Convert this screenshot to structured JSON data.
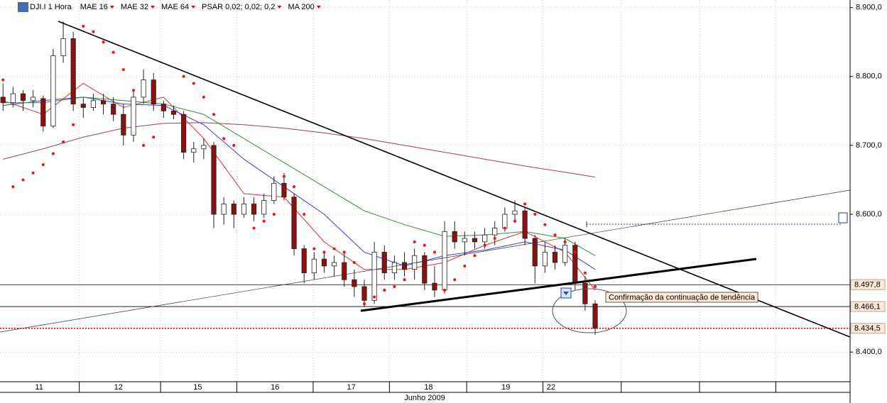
{
  "chart_data": {
    "type": "candlestick",
    "title": "DJI.I 1 Hora",
    "x_label": "Junho 2009",
    "xlim": [
      -0.3,
      84.4
    ],
    "ylim": [
      8357,
      8911
    ],
    "grid": true,
    "yticks": [
      {
        "value": 8400,
        "label": "8.400,0"
      },
      {
        "value": 8600,
        "label": "8.600,0"
      },
      {
        "value": 8700,
        "label": "8.700,0"
      },
      {
        "value": 8800,
        "label": "8.800,0"
      },
      {
        "value": 8900,
        "label": "8.900,0"
      }
    ],
    "xticks": [
      {
        "value": 3.6,
        "label": "11"
      },
      {
        "value": 11.5,
        "label": "12"
      },
      {
        "value": 19.4,
        "label": "15"
      },
      {
        "value": 27.1,
        "label": "16"
      },
      {
        "value": 34.7,
        "label": "17"
      },
      {
        "value": 42.4,
        "label": "18"
      },
      {
        "value": 50.1,
        "label": "19"
      },
      {
        "value": 54.6,
        "label": "22"
      }
    ],
    "xdividers": [
      7.6,
      15.7,
      23.3,
      30.9,
      38.5,
      46.2,
      53.8,
      61.6,
      69.4,
      77.0
    ],
    "up_color": "#ffffff",
    "down_color": "#8b1010",
    "open": [
      8770,
      8762,
      8775,
      8765,
      8768,
      8728,
      8830,
      8855,
      8760,
      8755,
      8765,
      8760,
      8745,
      8715,
      8770,
      8795,
      8760,
      8750,
      8745,
      8690,
      8695,
      8700,
      8600,
      8615,
      8600,
      8615,
      8600,
      8620,
      8645,
      8625,
      8550,
      8515,
      8535,
      8525,
      8530,
      8505,
      8495,
      8475,
      8545,
      8515,
      8530,
      8520,
      8540,
      8500,
      8490,
      8575,
      8560,
      8565,
      8560,
      8570,
      8580,
      8600,
      8605,
      8565,
      8525,
      8545,
      8530,
      8555,
      8500,
      8470
    ],
    "high": [
      8790,
      8785,
      8780,
      8780,
      8772,
      8840,
      8880,
      8865,
      8770,
      8775,
      8775,
      8770,
      8760,
      8780,
      8810,
      8805,
      8765,
      8758,
      8750,
      8705,
      8710,
      8705,
      8625,
      8620,
      8625,
      8625,
      8630,
      8655,
      8660,
      8630,
      8555,
      8545,
      8545,
      8540,
      8545,
      8520,
      8505,
      8560,
      8555,
      8540,
      8545,
      8550,
      8545,
      8525,
      8590,
      8590,
      8575,
      8575,
      8580,
      8590,
      8610,
      8620,
      8610,
      8570,
      8560,
      8555,
      8565,
      8560,
      8510,
      8475
    ],
    "low": [
      8750,
      8755,
      8750,
      8755,
      8720,
      8725,
      8820,
      8750,
      8740,
      8750,
      8745,
      8735,
      8700,
      8705,
      8760,
      8750,
      8740,
      8738,
      8680,
      8675,
      8680,
      8580,
      8585,
      8580,
      8595,
      8590,
      8595,
      8615,
      8620,
      8540,
      8500,
      8505,
      8515,
      8510,
      8495,
      8480,
      8465,
      8470,
      8505,
      8505,
      8510,
      8505,
      8490,
      8480,
      8485,
      8550,
      8540,
      8550,
      8550,
      8555,
      8575,
      8590,
      8555,
      8500,
      8515,
      8520,
      8525,
      8490,
      8460,
      8425
    ],
    "close": [
      8762,
      8775,
      8765,
      8770,
      8728,
      8830,
      8855,
      8760,
      8755,
      8765,
      8760,
      8745,
      8715,
      8770,
      8795,
      8760,
      8750,
      8745,
      8690,
      8695,
      8700,
      8600,
      8615,
      8600,
      8615,
      8600,
      8620,
      8645,
      8625,
      8550,
      8515,
      8535,
      8525,
      8530,
      8505,
      8495,
      8475,
      8545,
      8515,
      8530,
      8520,
      8540,
      8500,
      8490,
      8575,
      8560,
      8565,
      8560,
      8570,
      8580,
      8600,
      8605,
      8565,
      8525,
      8545,
      8530,
      8555,
      8500,
      8470,
      8434.5
    ],
    "series": [
      {
        "name": "MAE 16",
        "color": "#e03030",
        "style": "line",
        "x": [
          0,
          4,
          8,
          12,
          16,
          20,
          24,
          28,
          32,
          36,
          40,
          44,
          48,
          52,
          56,
          59
        ],
        "values": [
          8765,
          8745,
          8790,
          8755,
          8770,
          8710,
          8630,
          8625,
          8560,
          8520,
          8520,
          8530,
          8555,
          8575,
          8545,
          8490
        ]
      },
      {
        "name": "MAE 32",
        "color": "#3a3ae0",
        "style": "line",
        "x": [
          0,
          4,
          8,
          12,
          16,
          20,
          24,
          28,
          32,
          36,
          40,
          44,
          48,
          52,
          56,
          59
        ],
        "values": [
          8758,
          8765,
          8770,
          8760,
          8758,
          8730,
          8680,
          8640,
          8600,
          8545,
          8525,
          8540,
          8548,
          8560,
          8548,
          8520
        ]
      },
      {
        "name": "MAE 64",
        "color": "#3a8a3a",
        "style": "line",
        "x": [
          0,
          4,
          8,
          12,
          16,
          20,
          24,
          28,
          32,
          36,
          40,
          44,
          48,
          52,
          56,
          59
        ],
        "values": [
          8762,
          8762,
          8770,
          8765,
          8760,
          8745,
          8710,
          8675,
          8640,
          8605,
          8585,
          8568,
          8570,
          8575,
          8565,
          8540
        ]
      },
      {
        "name": "PSAR 0,02; 0,02; 0,2",
        "color": "#ee1111",
        "style": "dots",
        "values": [
          8795,
          8640,
          8650,
          8660,
          8672,
          8688,
          8705,
          8730,
          8873,
          8865,
          8850,
          8835,
          8810,
          8780,
          8700,
          8712,
          null,
          null,
          8800,
          8790,
          8770,
          8745,
          8710,
          8700,
          null,
          8580,
          8590,
          8600,
          8655,
          8640,
          8600,
          8550,
          8545,
          8550,
          8545,
          8530,
          8470,
          8480,
          8490,
          8495,
          8505,
          8560,
          8555,
          8545,
          8490,
          8505,
          8525,
          8540,
          8555,
          8565,
          8580,
          8590,
          8615,
          8600,
          8585,
          8570,
          8560,
          8545,
          8515,
          8495
        ]
      },
      {
        "name": "MA 200",
        "color": "#a04050",
        "style": "line",
        "x": [
          0,
          4,
          8,
          12,
          16,
          20,
          24,
          28,
          32,
          36,
          40,
          44,
          48,
          52,
          56,
          59
        ],
        "values": [
          8680,
          8695,
          8712,
          8725,
          8732,
          8733,
          8730,
          8725,
          8718,
          8710,
          8700,
          8690,
          8680,
          8670,
          8661,
          8654
        ]
      }
    ],
    "levels": [
      {
        "value": 8497.8,
        "label": "8.497,8",
        "color": "#000000",
        "dash": false
      },
      {
        "value": 8466.1,
        "label": "8.466,1",
        "color": "#000000",
        "dash": false
      },
      {
        "value": 8434.5,
        "label": "8.434,5",
        "color": "#dd0000",
        "dash": true
      }
    ],
    "annotation": "Confirmação da continuação de tendência"
  }
}
